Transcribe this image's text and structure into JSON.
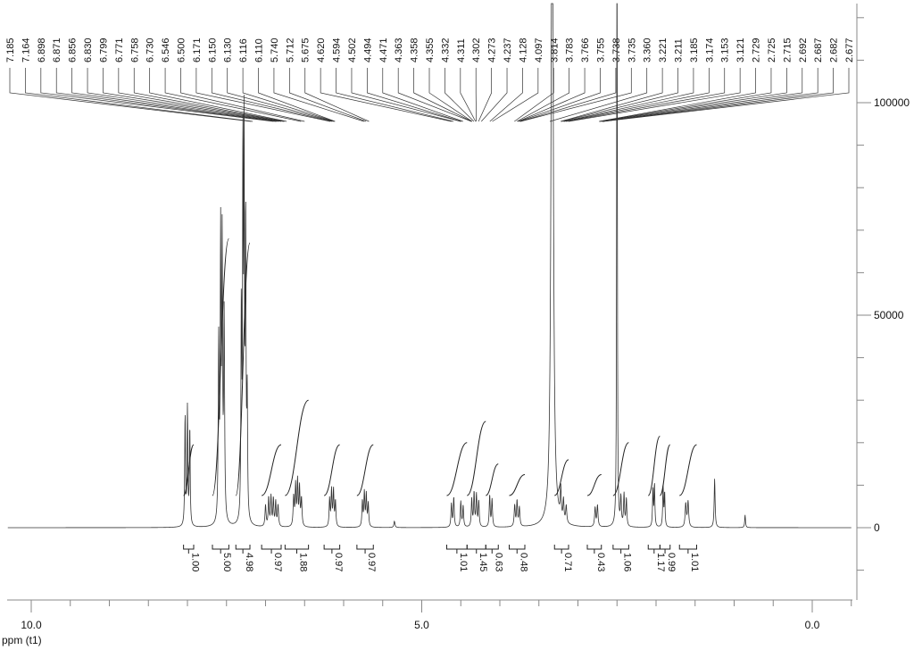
{
  "chart_data": {
    "type": "line",
    "xlabel": "ppm (t1)",
    "x_ticks": [
      {
        "value": 10.0,
        "label": "10.0"
      },
      {
        "value": 5.0,
        "label": "5.0"
      },
      {
        "value": 0.0,
        "label": "0.0"
      }
    ],
    "xlim": [
      10.3,
      -0.5
    ],
    "y_ticks": [
      {
        "value": 0,
        "label": "0"
      },
      {
        "value": 50000,
        "label": "50000"
      },
      {
        "value": 100000,
        "label": "100000"
      }
    ],
    "ylim": [
      -10000,
      120000
    ],
    "peak_labels": [
      "7.185",
      "7.164",
      "6.898",
      "6.871",
      "6.856",
      "6.830",
      "6.799",
      "6.771",
      "6.758",
      "6.730",
      "6.546",
      "6.500",
      "6.171",
      "6.150",
      "6.130",
      "6.116",
      "6.110",
      "5.740",
      "5.712",
      "5.675",
      "4.620",
      "4.594",
      "4.502",
      "4.494",
      "4.471",
      "4.363",
      "4.358",
      "4.355",
      "4.332",
      "4.311",
      "4.302",
      "4.273",
      "4.237",
      "4.128",
      "4.097",
      "3.814",
      "3.783",
      "3.766",
      "3.755",
      "3.738",
      "3.735",
      "3.360",
      "3.221",
      "3.211",
      "3.185",
      "3.174",
      "3.153",
      "3.121",
      "2.729",
      "2.725",
      "2.715",
      "2.692",
      "2.687",
      "2.682",
      "2.677"
    ],
    "integrals": [
      {
        "from": 8.05,
        "to": 7.92,
        "value": "1.00",
        "height": 19500
      },
      {
        "from": 7.68,
        "to": 7.47,
        "value": "5.00",
        "height": 68000
      },
      {
        "from": 7.38,
        "to": 7.2,
        "value": "4.98",
        "height": 67000
      },
      {
        "from": 7.05,
        "to": 6.8,
        "value": "0.97",
        "height": 19500
      },
      {
        "from": 6.75,
        "to": 6.45,
        "value": "1.88",
        "height": 30000
      },
      {
        "from": 6.25,
        "to": 6.05,
        "value": "0.97",
        "height": 19500
      },
      {
        "from": 5.83,
        "to": 5.62,
        "value": "0.97",
        "height": 19500
      },
      {
        "from": 4.68,
        "to": 4.42,
        "value": "1.01",
        "height": 20000
      },
      {
        "from": 4.42,
        "to": 4.18,
        "value": "1.45",
        "height": 25000
      },
      {
        "from": 4.18,
        "to": 4.02,
        "value": "0.63",
        "height": 15000
      },
      {
        "from": 3.88,
        "to": 3.68,
        "value": "0.48",
        "height": 12500
      },
      {
        "from": 3.3,
        "to": 3.12,
        "value": "0.71",
        "height": 16000
      },
      {
        "from": 2.88,
        "to": 2.7,
        "value": "0.43",
        "height": 12500
      },
      {
        "from": 2.55,
        "to": 2.35,
        "value": "1.06",
        "height": 20000
      },
      {
        "from": 2.1,
        "to": 1.95,
        "value": "1.17",
        "height": 21500
      },
      {
        "from": 1.95,
        "to": 1.82,
        "value": "0.99",
        "height": 19500
      },
      {
        "from": 1.7,
        "to": 1.48,
        "value": "1.01",
        "height": 19500
      }
    ],
    "peaks": [
      {
        "ppm": 8.03,
        "height": 26000,
        "width": 0.006
      },
      {
        "ppm": 8.0,
        "height": 27500,
        "width": 0.006
      },
      {
        "ppm": 7.97,
        "height": 23000,
        "width": 0.006
      },
      {
        "ppm": 7.6,
        "height": 42000,
        "width": 0.007
      },
      {
        "ppm": 7.575,
        "height": 66000,
        "width": 0.006
      },
      {
        "ppm": 7.555,
        "height": 64000,
        "width": 0.006
      },
      {
        "ppm": 7.53,
        "height": 48000,
        "width": 0.007
      },
      {
        "ppm": 7.31,
        "height": 50000,
        "width": 0.006
      },
      {
        "ppm": 7.29,
        "height": 86000,
        "width": 0.005
      },
      {
        "ppm": 7.275,
        "height": 88000,
        "width": 0.005
      },
      {
        "ppm": 7.255,
        "height": 70000,
        "width": 0.006
      },
      {
        "ppm": 7.235,
        "height": 28000,
        "width": 0.006
      },
      {
        "ppm": 7.0,
        "height": 5000,
        "width": 0.008
      },
      {
        "ppm": 6.96,
        "height": 6800,
        "width": 0.007
      },
      {
        "ppm": 6.93,
        "height": 7000,
        "width": 0.007
      },
      {
        "ppm": 6.9,
        "height": 6500,
        "width": 0.007
      },
      {
        "ppm": 6.87,
        "height": 5800,
        "width": 0.007
      },
      {
        "ppm": 6.84,
        "height": 5000,
        "width": 0.008
      },
      {
        "ppm": 6.64,
        "height": 7000,
        "width": 0.008
      },
      {
        "ppm": 6.615,
        "height": 9500,
        "width": 0.007
      },
      {
        "ppm": 6.59,
        "height": 10500,
        "width": 0.007
      },
      {
        "ppm": 6.565,
        "height": 9000,
        "width": 0.007
      },
      {
        "ppm": 6.54,
        "height": 6500,
        "width": 0.008
      },
      {
        "ppm": 6.18,
        "height": 6500,
        "width": 0.007
      },
      {
        "ppm": 6.155,
        "height": 8500,
        "width": 0.007
      },
      {
        "ppm": 6.13,
        "height": 8500,
        "width": 0.007
      },
      {
        "ppm": 6.105,
        "height": 6000,
        "width": 0.007
      },
      {
        "ppm": 5.76,
        "height": 6000,
        "width": 0.007
      },
      {
        "ppm": 5.735,
        "height": 8000,
        "width": 0.007
      },
      {
        "ppm": 5.71,
        "height": 7500,
        "width": 0.007
      },
      {
        "ppm": 5.685,
        "height": 5500,
        "width": 0.007
      },
      {
        "ppm": 5.35,
        "height": 1500,
        "width": 0.008
      },
      {
        "ppm": 4.62,
        "height": 5500,
        "width": 0.007
      },
      {
        "ppm": 4.59,
        "height": 7000,
        "width": 0.007
      },
      {
        "ppm": 4.5,
        "height": 6000,
        "width": 0.007
      },
      {
        "ppm": 4.47,
        "height": 5000,
        "width": 0.007
      },
      {
        "ppm": 4.36,
        "height": 6500,
        "width": 0.007
      },
      {
        "ppm": 4.33,
        "height": 8000,
        "width": 0.007
      },
      {
        "ppm": 4.3,
        "height": 7500,
        "width": 0.007
      },
      {
        "ppm": 4.27,
        "height": 6000,
        "width": 0.007
      },
      {
        "ppm": 4.13,
        "height": 7500,
        "width": 0.007
      },
      {
        "ppm": 4.1,
        "height": 6500,
        "width": 0.007
      },
      {
        "ppm": 3.81,
        "height": 5000,
        "width": 0.008
      },
      {
        "ppm": 3.78,
        "height": 6000,
        "width": 0.007
      },
      {
        "ppm": 3.75,
        "height": 4500,
        "width": 0.008
      },
      {
        "ppm": 3.33,
        "height": 200000,
        "width": 0.014
      },
      {
        "ppm": 3.22,
        "height": 7000,
        "width": 0.007
      },
      {
        "ppm": 3.185,
        "height": 5000,
        "width": 0.007
      },
      {
        "ppm": 3.15,
        "height": 4000,
        "width": 0.008
      },
      {
        "ppm": 2.78,
        "height": 4500,
        "width": 0.008
      },
      {
        "ppm": 2.75,
        "height": 5000,
        "width": 0.008
      },
      {
        "ppm": 2.5,
        "height": 200000,
        "width": 0.004
      },
      {
        "ppm": 2.45,
        "height": 6500,
        "width": 0.007
      },
      {
        "ppm": 2.41,
        "height": 7500,
        "width": 0.007
      },
      {
        "ppm": 2.38,
        "height": 6500,
        "width": 0.007
      },
      {
        "ppm": 2.04,
        "height": 9000,
        "width": 0.006
      },
      {
        "ppm": 2.02,
        "height": 10000,
        "width": 0.006
      },
      {
        "ppm": 1.91,
        "height": 9500,
        "width": 0.006
      },
      {
        "ppm": 1.89,
        "height": 8000,
        "width": 0.006
      },
      {
        "ppm": 1.62,
        "height": 5500,
        "width": 0.009
      },
      {
        "ppm": 1.59,
        "height": 6000,
        "width": 0.009
      },
      {
        "ppm": 1.25,
        "height": 11500,
        "width": 0.007
      },
      {
        "ppm": 0.86,
        "height": 3000,
        "width": 0.006
      }
    ]
  }
}
